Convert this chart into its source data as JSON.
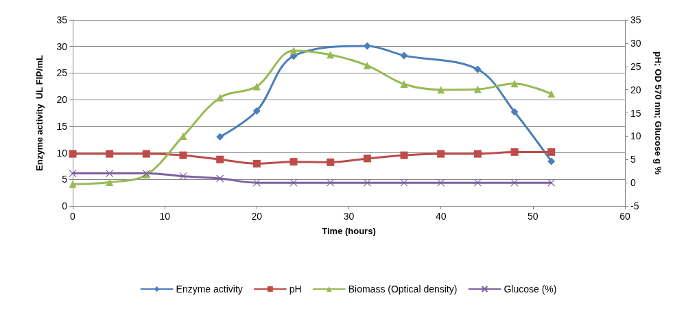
{
  "chart_data": {
    "type": "line",
    "xlabel": "Time (hours)",
    "ylabel": "Enzyme activity  UL FIP/mL",
    "y2label": "pH; OD 570 nm; Glucose g %",
    "xlim": [
      0,
      60
    ],
    "xticks": [
      0,
      10,
      20,
      30,
      40,
      50,
      60
    ],
    "ylim": [
      0,
      35
    ],
    "yticks": [
      0,
      5,
      10,
      15,
      20,
      25,
      30,
      35
    ],
    "y2lim": [
      -5,
      35
    ],
    "y2ticks": [
      -5,
      0,
      5,
      10,
      15,
      20,
      25,
      30,
      35
    ],
    "grid": "y",
    "legend": "bottom",
    "line_style": "solid",
    "series": [
      {
        "name": "Enzyme activity",
        "color": "#4a7ebb",
        "marker": "diamond",
        "x": [
          16,
          20,
          24,
          32,
          36,
          44,
          48,
          52
        ],
        "values": [
          13.0,
          17.9,
          28.2,
          30.1,
          28.3,
          25.7,
          17.7,
          8.4
        ]
      },
      {
        "name": "pH",
        "color": "#be4b48",
        "marker": "square",
        "axis": "y2",
        "x": [
          0,
          4,
          8,
          12,
          16,
          20,
          24,
          28,
          32,
          36,
          40,
          44,
          48,
          52
        ],
        "values": [
          6.2,
          6.2,
          6.2,
          5.9,
          5.0,
          4.1,
          4.5,
          4.4,
          5.2,
          5.9,
          6.2,
          6.2,
          6.6,
          6.6
        ]
      },
      {
        "name": "Biomass (Optical density)",
        "color": "#98b954",
        "marker": "triangle",
        "axis": "y2",
        "x": [
          0,
          4,
          8,
          12,
          16,
          20,
          24,
          28,
          32,
          36,
          40,
          44,
          48,
          52
        ],
        "values": [
          -0.3,
          0.1,
          1.7,
          10.0,
          18.3,
          20.7,
          28.4,
          27.5,
          25.2,
          21.2,
          20.0,
          20.1,
          21.3,
          19.1
        ]
      },
      {
        "name": "Glucose (%)",
        "color": "#7d60a0",
        "marker": "cross",
        "axis": "y2",
        "x": [
          0,
          4,
          8,
          12,
          16,
          20,
          24,
          28,
          32,
          36,
          40,
          44,
          48,
          52
        ],
        "values": [
          2.0,
          2.0,
          2.0,
          1.4,
          0.9,
          0,
          0,
          0,
          0,
          0,
          0,
          0,
          0,
          0
        ]
      }
    ]
  }
}
